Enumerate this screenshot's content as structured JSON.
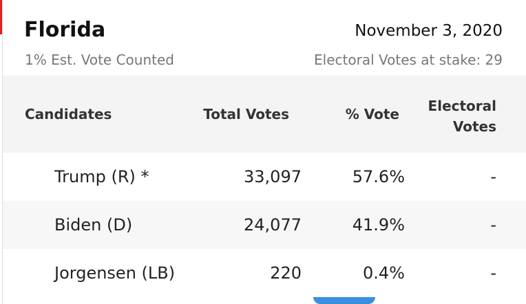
{
  "header": {
    "title": "Florida",
    "date": "November 3, 2020",
    "subtitle": "1% Est. Vote Counted",
    "stake": "Electoral Votes at stake: 29"
  },
  "table": {
    "columns": [
      "Candidates",
      "Total Votes",
      "% Vote",
      "Electoral Votes"
    ],
    "rows": [
      [
        "Trump (R) *",
        "33,097",
        "57.6%",
        "-"
      ],
      [
        "Biden (D)",
        "24,077",
        "41.9%",
        "-"
      ],
      [
        "Jorgensen (LB)",
        "220",
        "0.4%",
        "-"
      ]
    ]
  }
}
